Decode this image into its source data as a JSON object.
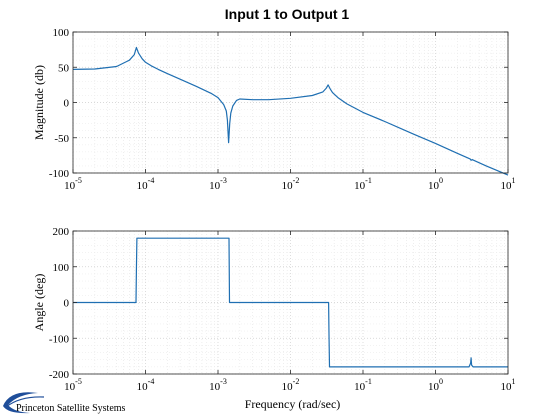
{
  "figure": {
    "title": "Input 1 to Output 1",
    "logo_text": "Princeton Satellite Systems",
    "line_color": "#1f6fb2"
  },
  "chart_data": [
    {
      "type": "line",
      "title": "Input 1 to Output 1",
      "xlabel": "",
      "ylabel": "Magnitude (db)",
      "x_scale": "log",
      "xlim": [
        1e-05,
        10
      ],
      "ylim": [
        -100,
        100
      ],
      "yticks": [
        -100,
        -50,
        0,
        50,
        100
      ],
      "xticks": [
        {
          "base": "10",
          "exp": "-5"
        },
        {
          "base": "10",
          "exp": "-4"
        },
        {
          "base": "10",
          "exp": "-3"
        },
        {
          "base": "10",
          "exp": "-2"
        },
        {
          "base": "10",
          "exp": "-1"
        },
        {
          "base": "10",
          "exp": "0"
        },
        {
          "base": "10",
          "exp": "1"
        }
      ],
      "grid": true,
      "x": [
        1e-05,
        2e-05,
        4e-05,
        6e-05,
        7e-05,
        7.5e-05,
        8e-05,
        9e-05,
        0.0001,
        0.00012,
        0.00015,
        0.0002,
        0.0003,
        0.0005,
        0.0008,
        0.001,
        0.0012,
        0.0013,
        0.00135,
        0.0014,
        0.00145,
        0.0015,
        0.0016,
        0.0018,
        0.002,
        0.003,
        0.005,
        0.01,
        0.02,
        0.028,
        0.031,
        0.033,
        0.035,
        0.038,
        0.045,
        0.06,
        0.1,
        0.2,
        0.5,
        1,
        2,
        3,
        3.1,
        3.2,
        5,
        10
      ],
      "y": [
        47,
        47.5,
        51,
        60,
        68,
        78,
        70,
        62,
        57,
        52,
        47,
        41,
        33,
        23,
        13,
        7,
        -3,
        -12,
        -25,
        -57,
        -30,
        -15,
        -5,
        3,
        5,
        4,
        4,
        6,
        10,
        15,
        20,
        25,
        20,
        14,
        7,
        -2,
        -14,
        -27,
        -45,
        -58,
        -72,
        -80,
        -82,
        -81,
        -90,
        -103
      ]
    },
    {
      "type": "line",
      "title": "",
      "xlabel": "Frequency (rad/sec)",
      "ylabel": "Angle (deg)",
      "x_scale": "log",
      "xlim": [
        1e-05,
        10
      ],
      "ylim": [
        -200,
        200
      ],
      "yticks": [
        -200,
        -100,
        0,
        100,
        200
      ],
      "xticks": [
        {
          "base": "10",
          "exp": "-5"
        },
        {
          "base": "10",
          "exp": "-4"
        },
        {
          "base": "10",
          "exp": "-3"
        },
        {
          "base": "10",
          "exp": "-2"
        },
        {
          "base": "10",
          "exp": "-1"
        },
        {
          "base": "10",
          "exp": "0"
        },
        {
          "base": "10",
          "exp": "1"
        }
      ],
      "grid": true,
      "x": [
        1e-05,
        7.4e-05,
        7.5e-05,
        7.6e-05,
        0.00142,
        0.00144,
        0.00146,
        0.0335,
        0.034,
        0.0345,
        2.9,
        3.05,
        3.1,
        3.15,
        3.3,
        10
      ],
      "y": [
        0,
        0,
        90,
        180,
        180,
        0,
        0,
        0,
        -90,
        -180,
        -180,
        -170,
        -155,
        -175,
        -180,
        -180
      ]
    }
  ]
}
